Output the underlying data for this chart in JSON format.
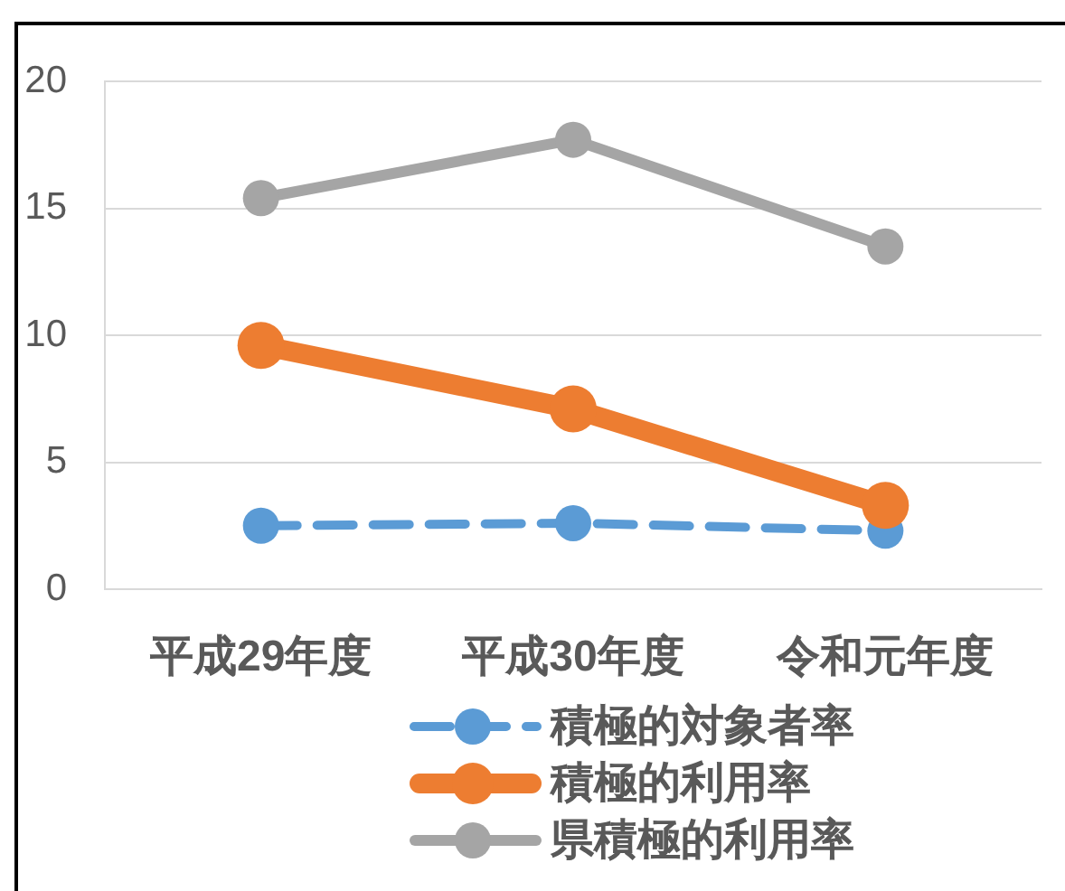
{
  "chart_data": {
    "type": "line",
    "categories": [
      "平成29年度",
      "平成30年度",
      "令和元年度"
    ],
    "series": [
      {
        "name": "積極的対象者率",
        "color": "#5b9bd5",
        "values": [
          2.5,
          2.6,
          2.3
        ],
        "line_style": "dashed"
      },
      {
        "name": "積極的利用率",
        "color": "#ed7d31",
        "values": [
          9.6,
          7.1,
          3.3
        ],
        "line_style": "solid"
      },
      {
        "name": "県積極的利用率",
        "color": "#a5a5a5",
        "values": [
          15.4,
          17.7,
          13.5
        ],
        "line_style": "solid"
      }
    ],
    "ylim": [
      0,
      20
    ],
    "yticks": [
      0,
      5,
      10,
      15,
      20
    ],
    "grid": "y",
    "legend": "bottom",
    "marker": "circle"
  }
}
